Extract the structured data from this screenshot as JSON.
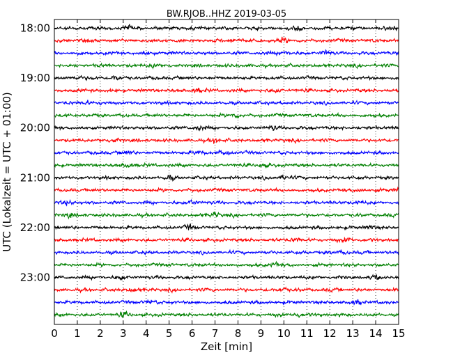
{
  "chart_data": {
    "type": "line",
    "title": "BW.RJOB..HHZ 2019-03-05",
    "xlabel": "Zeit  [min]",
    "ylabel": "UTC (Lokalzeit = UTC + 01:00)",
    "xlim": [
      0,
      15
    ],
    "x_ticks": [
      "0",
      "1",
      "2",
      "3",
      "4",
      "5",
      "6",
      "7",
      "8",
      "9",
      "10",
      "11",
      "12",
      "13",
      "14",
      "15"
    ],
    "rows_per_hour": 4,
    "minutes_per_row": 15,
    "start_time": "18:00",
    "y_tick_labels": [
      "18:00",
      "19:00",
      "20:00",
      "21:00",
      "22:00",
      "23:00"
    ],
    "grid": "vertical dotted at each minute",
    "colors": [
      "#000000",
      "#ff0000",
      "#0000ff",
      "#008000"
    ],
    "traces": [
      {
        "row": 0,
        "start": "18:00",
        "color": "#000000",
        "bursts": [
          3.2,
          10.6,
          14.9
        ]
      },
      {
        "row": 1,
        "start": "18:15",
        "color": "#ff0000",
        "bursts": [
          7.7,
          10.0
        ]
      },
      {
        "row": 2,
        "start": "18:30",
        "color": "#0000ff",
        "bursts": [
          4.0,
          10.0,
          11.8
        ]
      },
      {
        "row": 3,
        "start": "18:45",
        "color": "#008000",
        "bursts": [
          4.3
        ]
      },
      {
        "row": 4,
        "start": "19:00",
        "color": "#000000",
        "bursts": [
          1.0,
          2.6
        ]
      },
      {
        "row": 5,
        "start": "19:15",
        "color": "#ff0000",
        "bursts": [
          6.2,
          9.7
        ]
      },
      {
        "row": 6,
        "start": "19:30",
        "color": "#0000ff",
        "bursts": [
          1.4
        ]
      },
      {
        "row": 7,
        "start": "19:45",
        "color": "#008000",
        "bursts": [
          7.9
        ]
      },
      {
        "row": 8,
        "start": "20:00",
        "color": "#000000",
        "bursts": [
          6.3,
          9.5
        ]
      },
      {
        "row": 9,
        "start": "20:15",
        "color": "#ff0000",
        "bursts": [
          2.6,
          7.0
        ]
      },
      {
        "row": 10,
        "start": "20:30",
        "color": "#0000ff",
        "bursts": [
          3.2,
          6.3,
          7.4
        ]
      },
      {
        "row": 11,
        "start": "20:45",
        "color": "#008000",
        "bursts": [
          3.2,
          9.1
        ]
      },
      {
        "row": 12,
        "start": "21:00",
        "color": "#000000",
        "bursts": [
          5.0,
          10.0
        ]
      },
      {
        "row": 13,
        "start": "21:15",
        "color": "#ff0000",
        "bursts": [
          13.3,
          15.0
        ]
      },
      {
        "row": 14,
        "start": "21:30",
        "color": "#0000ff",
        "bursts": [
          0.6,
          6.0,
          13.2
        ]
      },
      {
        "row": 15,
        "start": "21:45",
        "color": "#008000",
        "bursts": [
          0.6,
          7.0
        ]
      },
      {
        "row": 16,
        "start": "22:00",
        "color": "#000000",
        "bursts": [
          5.9,
          13.7
        ]
      },
      {
        "row": 17,
        "start": "22:15",
        "color": "#ff0000",
        "bursts": [
          10.5,
          12.8
        ]
      },
      {
        "row": 18,
        "start": "22:30",
        "color": "#0000ff",
        "bursts": [
          12.6
        ]
      },
      {
        "row": 19,
        "start": "22:45",
        "color": "#008000",
        "bursts": [
          9.6
        ]
      },
      {
        "row": 20,
        "start": "23:00",
        "color": "#000000",
        "bursts": [
          2.9,
          14.0
        ]
      },
      {
        "row": 21,
        "start": "23:15",
        "color": "#ff0000",
        "bursts": [
          3.4,
          10.0
        ]
      },
      {
        "row": 22,
        "start": "23:30",
        "color": "#0000ff",
        "bursts": [
          4.2,
          13.2
        ]
      },
      {
        "row": 23,
        "start": "23:45",
        "color": "#008000",
        "bursts": [
          3.0,
          10.6
        ]
      }
    ]
  }
}
